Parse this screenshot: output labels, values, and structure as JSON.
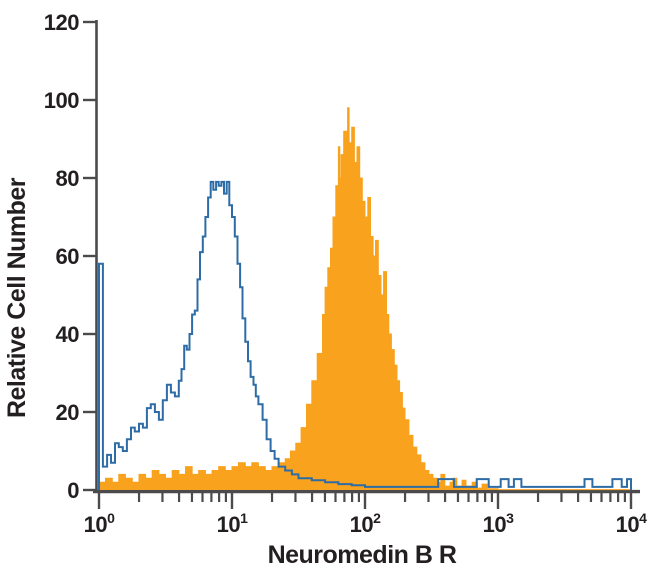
{
  "chart_data": {
    "type": "area",
    "subtype": "flow-cytometry-overlay-histogram",
    "xlabel": "Neuromedin B R",
    "ylabel": "Relative Cell Number",
    "x_scale": "log",
    "xlim": [
      1,
      10000
    ],
    "ylim": [
      0,
      120
    ],
    "y_ticks": [
      0,
      20,
      40,
      60,
      80,
      100,
      120
    ],
    "x_tick_exponents": [
      0,
      1,
      2,
      3,
      4
    ],
    "grid": "off",
    "legend": "none",
    "colors": {
      "axis": "#4b4b4d",
      "text": "#231f20",
      "background": "#ffffff",
      "blue": "#2d6ca6",
      "orange": "#f8a21d"
    },
    "series": [
      {
        "name": "orange-filled-histogram",
        "style": "filled",
        "color": "#f8a21d",
        "peak": {
          "x": 74,
          "y": 98
        },
        "points": [
          [
            1.0,
            2
          ],
          [
            1.12,
            3
          ],
          [
            1.26,
            2
          ],
          [
            1.41,
            4
          ],
          [
            1.58,
            3
          ],
          [
            1.78,
            2
          ],
          [
            2.0,
            4
          ],
          [
            2.24,
            3
          ],
          [
            2.51,
            5
          ],
          [
            2.82,
            4
          ],
          [
            3.16,
            3
          ],
          [
            3.55,
            5
          ],
          [
            3.98,
            4
          ],
          [
            4.47,
            6
          ],
          [
            5.01,
            4
          ],
          [
            5.62,
            5
          ],
          [
            6.31,
            4
          ],
          [
            7.08,
            5
          ],
          [
            7.94,
            6
          ],
          [
            8.91,
            5
          ],
          [
            10.0,
            6
          ],
          [
            11.2,
            7
          ],
          [
            12.6,
            6
          ],
          [
            14.1,
            7
          ],
          [
            15.8,
            6
          ],
          [
            17.8,
            5
          ],
          [
            20.0,
            6
          ],
          [
            22.4,
            7
          ],
          [
            25.1,
            8
          ],
          [
            27.5,
            10
          ],
          [
            30.2,
            12
          ],
          [
            33.1,
            16
          ],
          [
            36.3,
            22
          ],
          [
            39.8,
            28
          ],
          [
            43.7,
            35
          ],
          [
            47.9,
            45
          ],
          [
            50.1,
            52
          ],
          [
            52.5,
            57
          ],
          [
            55.0,
            62
          ],
          [
            57.5,
            70
          ],
          [
            60.3,
            78
          ],
          [
            63.1,
            88
          ],
          [
            64.6,
            80
          ],
          [
            66.1,
            86
          ],
          [
            69.2,
            92
          ],
          [
            74.0,
            98
          ],
          [
            75.9,
            89
          ],
          [
            79.4,
            93
          ],
          [
            83.2,
            84
          ],
          [
            87.1,
            88
          ],
          [
            91.2,
            80
          ],
          [
            95.5,
            74
          ],
          [
            100,
            70
          ],
          [
            105,
            75
          ],
          [
            110,
            65
          ],
          [
            115,
            60
          ],
          [
            120,
            64
          ],
          [
            126,
            55
          ],
          [
            132,
            50
          ],
          [
            138,
            56
          ],
          [
            145,
            45
          ],
          [
            151,
            40
          ],
          [
            158,
            36
          ],
          [
            166,
            32
          ],
          [
            174,
            28
          ],
          [
            182,
            25
          ],
          [
            191,
            21
          ],
          [
            200,
            18
          ],
          [
            214,
            14
          ],
          [
            229,
            11
          ],
          [
            245,
            9
          ],
          [
            263,
            7
          ],
          [
            282,
            5
          ],
          [
            302,
            4
          ],
          [
            324,
            3
          ],
          [
            347,
            2
          ],
          [
            372,
            4
          ],
          [
            398,
            1
          ],
          [
            436,
            2
          ],
          [
            457,
            3
          ],
          [
            490,
            1
          ],
          [
            537,
            2.5
          ],
          [
            575,
            1
          ],
          [
            640,
            2
          ],
          [
            700,
            0.5
          ],
          [
            759,
            1.5
          ],
          [
            830,
            0.3
          ],
          [
            1000,
            0.1
          ],
          [
            3162,
            0.1
          ],
          [
            10000,
            0.1
          ]
        ]
      },
      {
        "name": "blue-open-histogram",
        "style": "open",
        "color": "#2d6ca6",
        "peak": {
          "x": 8,
          "y": 79
        },
        "points": [
          [
            1.0,
            58
          ],
          [
            1.07,
            6
          ],
          [
            1.15,
            9
          ],
          [
            1.23,
            7
          ],
          [
            1.32,
            12
          ],
          [
            1.41,
            11
          ],
          [
            1.51,
            10
          ],
          [
            1.62,
            13
          ],
          [
            1.74,
            16
          ],
          [
            1.86,
            15
          ],
          [
            2.0,
            17
          ],
          [
            2.14,
            16
          ],
          [
            2.29,
            21
          ],
          [
            2.45,
            22
          ],
          [
            2.63,
            20
          ],
          [
            2.82,
            18
          ],
          [
            3.02,
            23
          ],
          [
            3.24,
            27
          ],
          [
            3.47,
            25
          ],
          [
            3.72,
            24
          ],
          [
            3.98,
            28
          ],
          [
            4.17,
            31
          ],
          [
            4.37,
            37
          ],
          [
            4.57,
            36
          ],
          [
            4.79,
            40
          ],
          [
            5.01,
            45
          ],
          [
            5.25,
            46
          ],
          [
            5.5,
            54
          ],
          [
            5.75,
            61
          ],
          [
            6.03,
            65
          ],
          [
            6.31,
            70
          ],
          [
            6.61,
            75
          ],
          [
            6.92,
            79
          ],
          [
            7.24,
            77
          ],
          [
            7.59,
            79
          ],
          [
            7.94,
            78
          ],
          [
            8.32,
            79
          ],
          [
            8.71,
            76
          ],
          [
            9.12,
            79
          ],
          [
            9.55,
            73
          ],
          [
            10.0,
            70
          ],
          [
            10.5,
            65
          ],
          [
            11.0,
            58
          ],
          [
            11.5,
            52
          ],
          [
            12.0,
            44
          ],
          [
            12.6,
            38
          ],
          [
            13.2,
            33
          ],
          [
            13.8,
            29
          ],
          [
            14.5,
            27
          ],
          [
            15.1,
            24
          ],
          [
            15.8,
            22
          ],
          [
            17.0,
            18
          ],
          [
            18.2,
            13
          ],
          [
            19.5,
            10
          ],
          [
            20.9,
            8
          ],
          [
            22.4,
            6
          ],
          [
            25.1,
            5
          ],
          [
            28.2,
            4
          ],
          [
            31.6,
            3
          ],
          [
            39.8,
            2.5
          ],
          [
            50.1,
            2
          ],
          [
            63.1,
            1.5
          ],
          [
            79.4,
            1.2
          ],
          [
            100,
            0.8
          ],
          [
            158,
            0.8
          ],
          [
            251,
            0.8
          ],
          [
            355,
            2.8
          ],
          [
            468,
            0.8
          ],
          [
            600,
            0.8
          ],
          [
            692,
            2.8
          ],
          [
            851,
            0.8
          ],
          [
            1047,
            2.8
          ],
          [
            1202,
            0.8
          ],
          [
            1318,
            2.8
          ],
          [
            1500,
            0.8
          ],
          [
            2000,
            0.8
          ],
          [
            3162,
            0.8
          ],
          [
            4467,
            2.8
          ],
          [
            5129,
            0.8
          ],
          [
            6310,
            0.8
          ],
          [
            7244,
            2.8
          ],
          [
            8511,
            0.8
          ],
          [
            9333,
            2.8
          ],
          [
            10000,
            2
          ]
        ]
      }
    ]
  }
}
